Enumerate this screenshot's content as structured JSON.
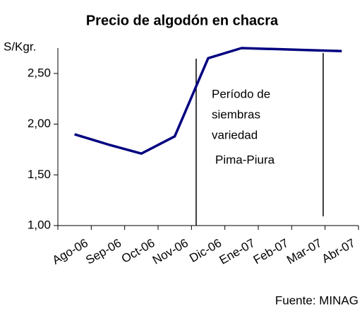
{
  "chart_data": {
    "type": "line",
    "title": "Precio de algodón en chacra",
    "y_label": "S/Kgr.",
    "source": "Fuente: MINAG",
    "annotation": [
      "Período de",
      "siembras",
      "variedad",
      "Pima-Piura"
    ],
    "categories": [
      "Ago-06",
      "Sep-06",
      "Oct-06",
      "Nov-06",
      "Dic-06",
      "Ene-07",
      "Feb-07",
      "Mar-07",
      "Abr-07"
    ],
    "values": [
      1.9,
      1.8,
      1.71,
      1.88,
      2.65,
      2.75,
      2.74,
      2.73,
      2.72
    ],
    "color": "#000080",
    "ylim": [
      1,
      2.75
    ],
    "yticks": [
      {
        "value": 1,
        "label": "1,00"
      },
      {
        "value": 1.5,
        "label": "1,50"
      },
      {
        "value": 2,
        "label": "2,00"
      },
      {
        "value": 2.5,
        "label": "2,50"
      }
    ],
    "grid": false
  }
}
